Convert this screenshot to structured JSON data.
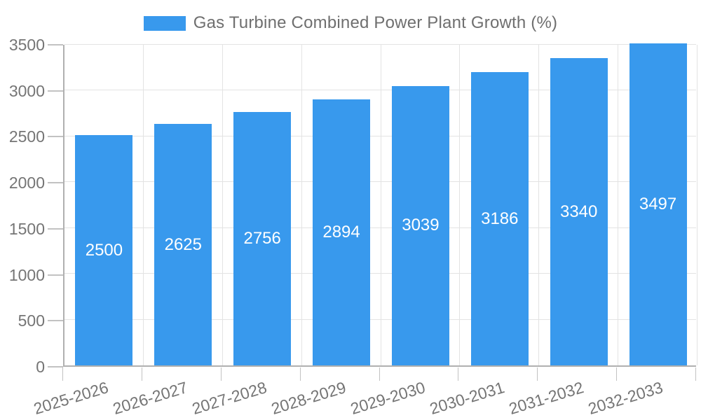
{
  "legend": {
    "label": "Gas Turbine Combined Power Plant Growth (%)"
  },
  "chart_data": {
    "type": "bar",
    "title": "",
    "xlabel": "",
    "ylabel": "",
    "categories": [
      "2025-2026",
      "2026-2027",
      "2027-2028",
      "2028-2029",
      "2029-2030",
      "2030-2031",
      "2031-2032",
      "2032-2033"
    ],
    "values": [
      2500,
      2625,
      2756,
      2894,
      3039,
      3186,
      3340,
      3497
    ],
    "value_labels": [
      "2500",
      "2625",
      "2756",
      "2894",
      "3039",
      "3186",
      "3340",
      "3497"
    ],
    "ylim": [
      0,
      3500
    ],
    "yticks": [
      0,
      500,
      1000,
      1500,
      2000,
      2500,
      3000,
      3500
    ],
    "grid": true,
    "legend_position": "top",
    "legend_entries": [
      "Gas Turbine Combined Power Plant Growth (%)"
    ],
    "colors": {
      "bar": "#3899ed",
      "grid": "#e3e3e3",
      "axis": "#b0b0b0",
      "tick_text": "#757575",
      "legend_text": "#6f6f6f",
      "value_text": "#ffffff"
    }
  }
}
